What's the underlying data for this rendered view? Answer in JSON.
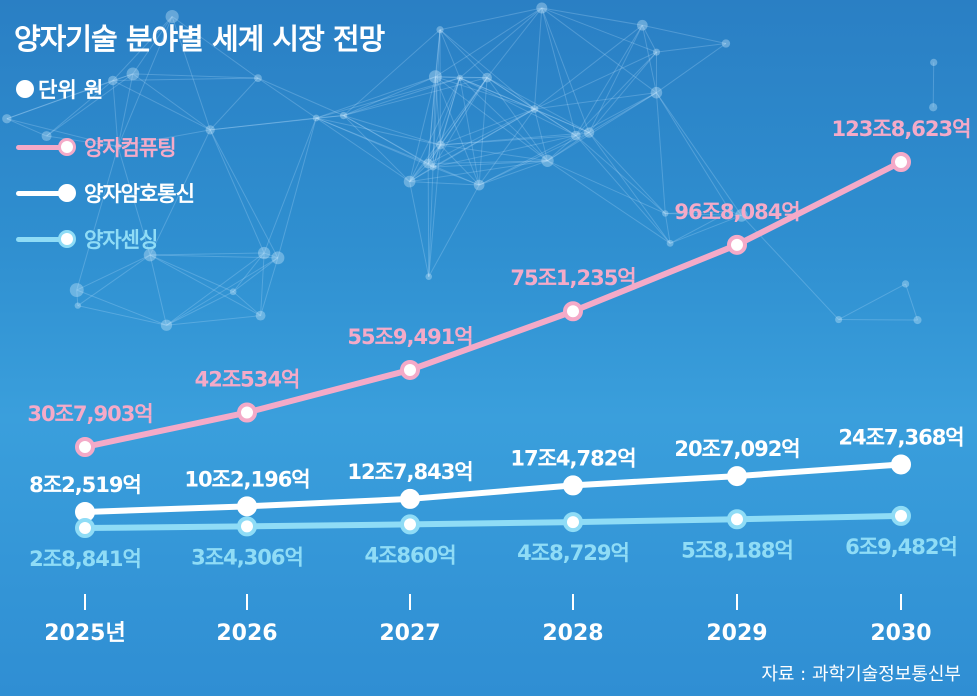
{
  "title": "양자기술 분야별 세계 시장 전망",
  "unit_label": "단위 원",
  "source": "자료 : 과학기술정보통신부",
  "colors": {
    "quantum_computing": "#f4aac8",
    "quantum_communication": "#ffffff",
    "quantum_sensing": "#8fdcf6"
  },
  "chart_data": {
    "type": "line",
    "categories": [
      "2025년",
      "2026",
      "2027",
      "2028",
      "2029",
      "2030"
    ],
    "series": [
      {
        "key": "quantum_computing",
        "name": "양자컴퓨팅",
        "values": [
          307903,
          420534,
          559491,
          751235,
          968084,
          1238623
        ],
        "labels": [
          "30조7,903억",
          "42조534억",
          "55조9,491억",
          "75조1,235억",
          "96조8,084억",
          "123조8,623억"
        ]
      },
      {
        "key": "quantum_communication",
        "name": "양자암호통신",
        "values": [
          82519,
          102196,
          127843,
          174782,
          207092,
          247368
        ],
        "labels": [
          "8조2,519억",
          "10조2,196억",
          "12조7,843억",
          "17조4,782억",
          "20조7,092억",
          "24조7,368억"
        ]
      },
      {
        "key": "quantum_sensing",
        "name": "양자센싱",
        "values": [
          28841,
          34306,
          40860,
          48729,
          58188,
          69482
        ],
        "labels": [
          "2조8,841억",
          "3조4,306억",
          "4조860억",
          "4조8,729억",
          "5조8,188억",
          "6조9,482억"
        ]
      }
    ],
    "unit": "억 원"
  }
}
